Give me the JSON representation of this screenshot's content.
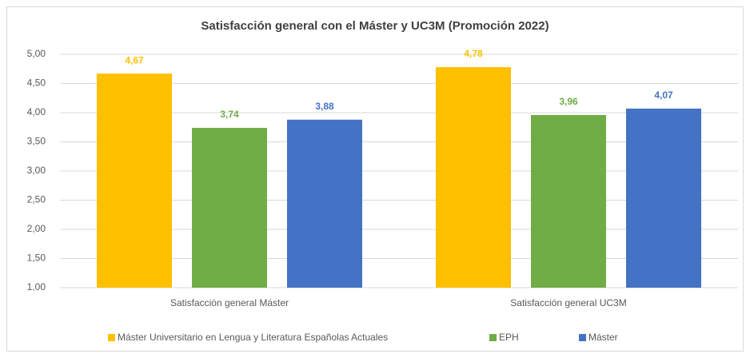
{
  "chart_data": {
    "type": "bar",
    "title": "Satisfacción general con el Máster y UC3M (Promoción 2022)",
    "categories": [
      "Satisfacción general Máster",
      "Satisfacción general UC3M"
    ],
    "series": [
      {
        "name": "Máster Universitario en Lengua y Literatura Españolas Actuales",
        "color": "#ffc000",
        "values": [
          4.67,
          4.78
        ],
        "value_labels": [
          "4,67",
          "4,78"
        ]
      },
      {
        "name": "EPH",
        "color": "#70ad47",
        "values": [
          3.74,
          3.96
        ],
        "value_labels": [
          "3,74",
          "3,96"
        ]
      },
      {
        "name": "Máster",
        "color": "#4472c4",
        "values": [
          3.88,
          4.07
        ],
        "value_labels": [
          "3,88",
          "4,07"
        ]
      }
    ],
    "ylim": [
      1,
      5
    ],
    "yticks": [
      {
        "value": 1,
        "label": "1,00"
      },
      {
        "value": 1.5,
        "label": "1,50"
      },
      {
        "value": 2,
        "label": "2,00"
      },
      {
        "value": 2.5,
        "label": "2,50"
      },
      {
        "value": 3,
        "label": "3,00"
      },
      {
        "value": 3.5,
        "label": "3,50"
      },
      {
        "value": 4,
        "label": "4,00"
      },
      {
        "value": 4.5,
        "label": "4,50"
      },
      {
        "value": 5,
        "label": "5,00"
      }
    ],
    "grid": true,
    "legend": "bottom"
  }
}
